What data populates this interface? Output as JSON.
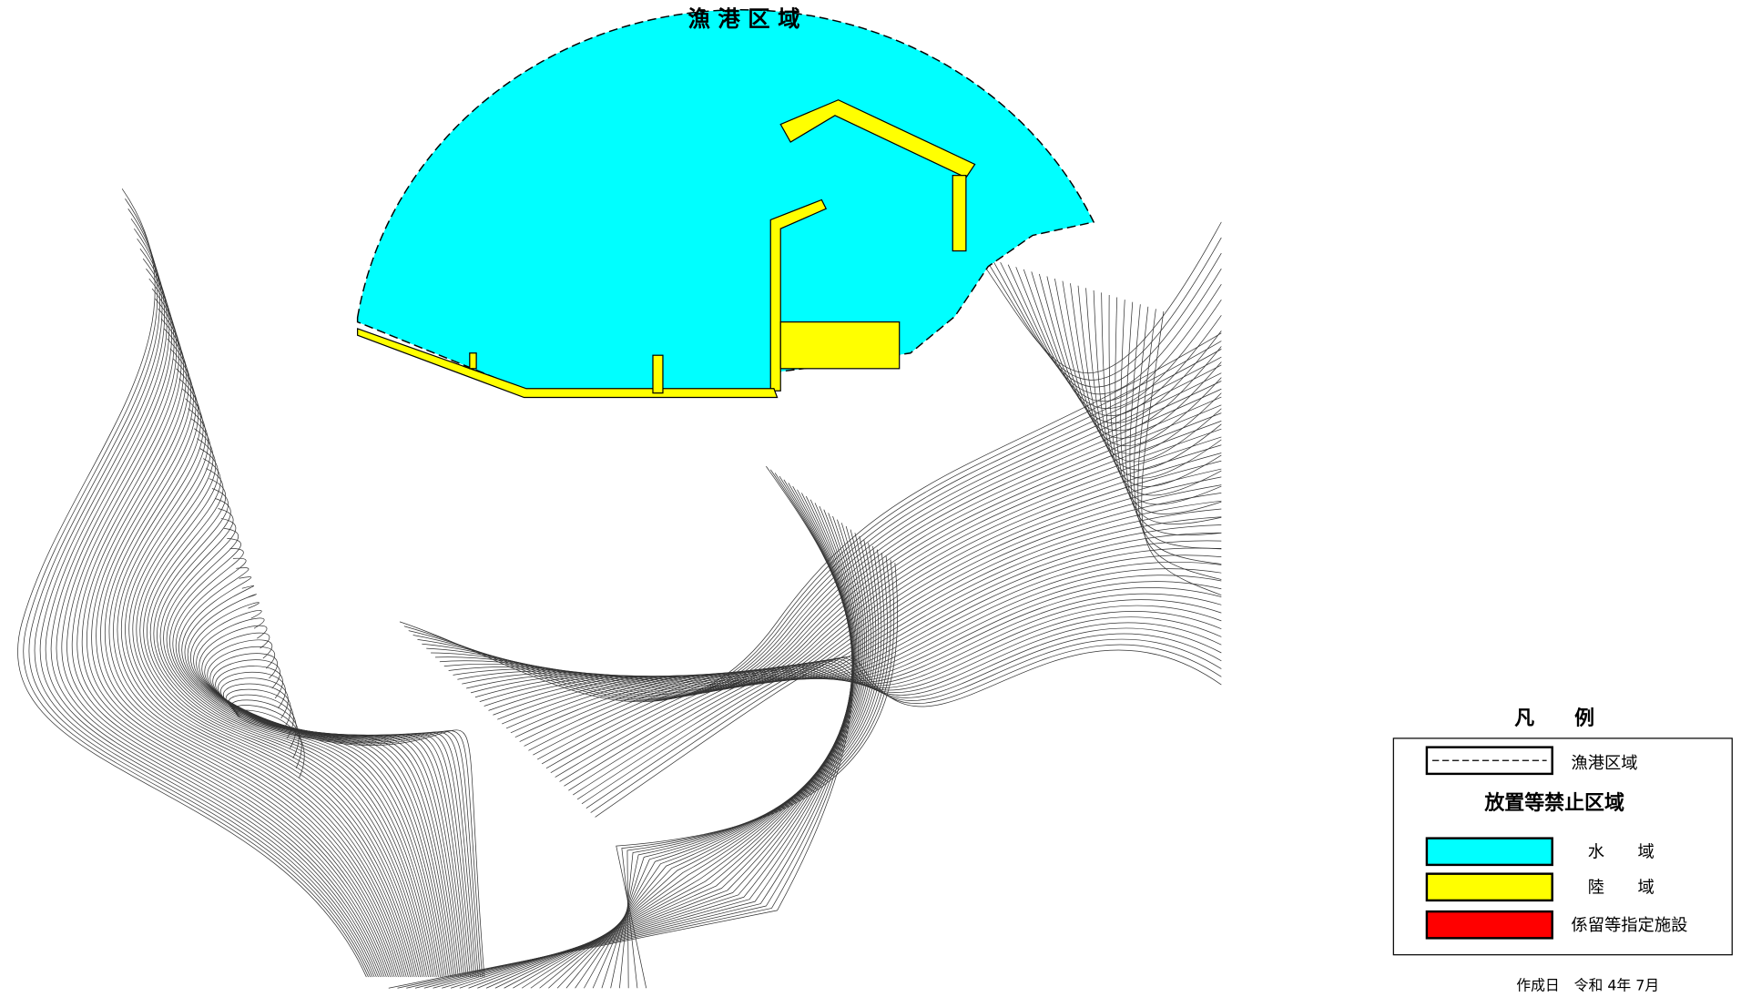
{
  "map": {
    "title": "漁 港 区 域"
  },
  "legend": {
    "title": "凡　　例",
    "boundary": "漁港区域",
    "subtitle": "放置等禁止区域",
    "items": [
      {
        "label": "水　　域",
        "color": "#00ffff"
      },
      {
        "label": "陸　　域",
        "color": "#ffff00"
      },
      {
        "label": "係留等指定施設",
        "color": "#ff0000"
      }
    ]
  },
  "footer": {
    "date": "作成日　令和 4年 7月"
  }
}
